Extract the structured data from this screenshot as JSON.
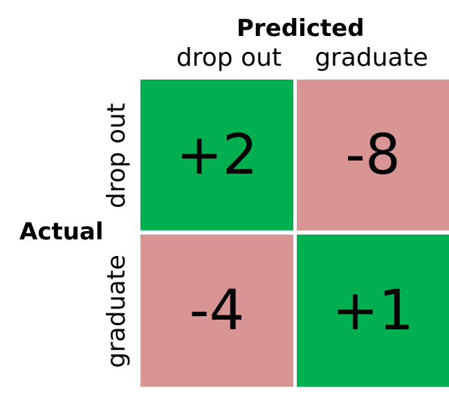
{
  "predicted_title": "Predicted",
  "actual_title": "Actual",
  "columns": [
    "drop out",
    "graduate"
  ],
  "rows": [
    "drop out",
    "graduate"
  ],
  "colors": {
    "positive": "#00b050",
    "negative": "#d99594"
  },
  "cells": [
    [
      {
        "value": "+2",
        "kind": "positive"
      },
      {
        "value": "-8",
        "kind": "negative"
      }
    ],
    [
      {
        "value": "-4",
        "kind": "negative"
      },
      {
        "value": "+1",
        "kind": "positive"
      }
    ]
  ]
}
